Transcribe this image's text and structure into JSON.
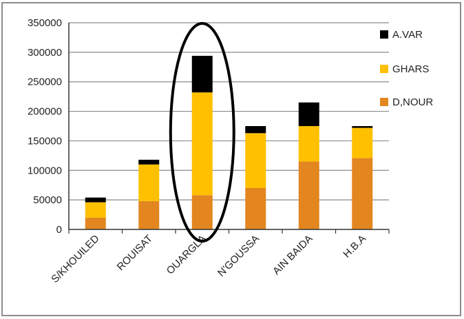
{
  "chart_data": {
    "type": "bar",
    "stacked": true,
    "categories": [
      "S/KHOUILED",
      "ROUISAT",
      "OUARGLA",
      "N'GOUSSA",
      "AIN BAIDA",
      "H.B.A"
    ],
    "series": [
      {
        "name": "D,NOUR",
        "color": "#e3861f",
        "values": [
          20000,
          48000,
          58000,
          70000,
          115000,
          121000
        ]
      },
      {
        "name": "GHARS",
        "color": "#ffc000",
        "values": [
          26000,
          62000,
          174000,
          93000,
          60000,
          51000
        ]
      },
      {
        "name": "A.VAR",
        "color": "#000000",
        "values": [
          8000,
          8000,
          62000,
          12000,
          40000,
          3000
        ]
      }
    ],
    "ylim": [
      0,
      350000
    ],
    "yticks": [
      0,
      50000,
      100000,
      150000,
      200000,
      250000,
      300000,
      350000
    ],
    "ytick_labels": [
      "0",
      "50000",
      "100000",
      "150000",
      "200000",
      "250000",
      "300000",
      "350000"
    ],
    "legend_order": [
      "A.VAR",
      "GHARS",
      "D,NOUR"
    ],
    "legend_position": "right",
    "grid": true,
    "highlight": {
      "category": "OUARGLA",
      "shape": "ellipse"
    }
  }
}
